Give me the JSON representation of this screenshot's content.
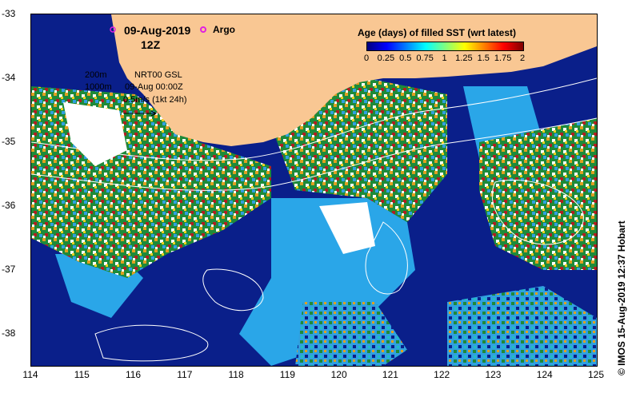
{
  "map": {
    "date": "09-Aug-2019",
    "hour": "12Z",
    "argo_label": "Argo",
    "info": {
      "contour_200": "200m",
      "contour_1000": "1000m",
      "model": "NRT00 GSL",
      "valid": "09-Aug 00:00Z",
      "scale": "0.5m/s (1kt 24h)"
    },
    "extent": {
      "lon": [
        114,
        125
      ],
      "lat": [
        -38.5,
        -33
      ]
    },
    "x_ticks": [
      "114",
      "115",
      "116",
      "117",
      "118",
      "119",
      "120",
      "121",
      "122",
      "123",
      "124",
      "125"
    ],
    "y_ticks": [
      "-33",
      "-34",
      "-35",
      "-36",
      "-37",
      "-38"
    ],
    "legend": {
      "title": "Age (days) of filled SST (wrt latest)",
      "ticks": [
        "0",
        "0.25",
        "0.5",
        "0.75",
        "1",
        "1.25",
        "1.5",
        "1.75",
        "2"
      ],
      "range": [
        0,
        2
      ]
    },
    "credit": "© IMOS 15-Aug-2019 12:37 Hobart",
    "colors": {
      "land": "#f9c793",
      "ocean_deep": "#0a1f8a",
      "argo": "#e020e0",
      "contour": "#ffffff"
    }
  }
}
